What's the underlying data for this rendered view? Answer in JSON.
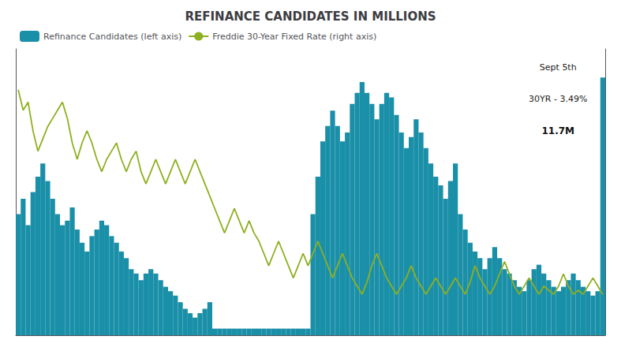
{
  "chart_data": {
    "type": "bar",
    "title": "REFINANCE CANDIDATES IN MILLIONS",
    "annotations": [
      "Sept 5th",
      "30YR - 3.49%",
      "11.7M"
    ],
    "series": [
      {
        "name": "Refinance Candidates (left axis)",
        "type": "bar",
        "color": "#1a8fa8",
        "values": [
          5.5,
          6.2,
          5.0,
          6.5,
          7.2,
          7.8,
          7.0,
          6.2,
          5.5,
          5.0,
          5.2,
          5.8,
          4.8,
          4.2,
          3.8,
          4.5,
          4.8,
          5.2,
          5.0,
          4.5,
          4.2,
          3.8,
          3.5,
          3.0,
          2.8,
          2.5,
          2.8,
          3.0,
          2.8,
          2.5,
          2.2,
          2.0,
          1.8,
          1.5,
          1.2,
          1.0,
          0.8,
          1.0,
          1.2,
          1.5,
          0.3,
          0.3,
          0.3,
          0.3,
          0.3,
          0.3,
          0.3,
          0.3,
          0.3,
          0.3,
          0.3,
          0.3,
          0.3,
          0.3,
          0.3,
          0.3,
          0.3,
          0.3,
          0.3,
          0.3,
          5.5,
          7.2,
          8.8,
          9.5,
          10.2,
          9.5,
          8.8,
          9.2,
          10.5,
          11.0,
          11.5,
          11.0,
          10.5,
          9.8,
          10.5,
          11.0,
          10.8,
          10.0,
          9.2,
          8.5,
          9.0,
          9.8,
          9.2,
          8.5,
          7.8,
          7.2,
          6.8,
          6.2,
          7.0,
          7.8,
          5.5,
          4.8,
          4.2,
          3.8,
          3.5,
          3.0,
          3.5,
          4.0,
          3.5,
          3.0,
          2.8,
          2.5,
          2.2,
          2.0,
          2.5,
          3.0,
          3.2,
          2.8,
          2.5,
          2.2,
          2.0,
          2.2,
          2.5,
          2.8,
          2.5,
          2.2,
          2.0,
          1.8,
          2.0,
          11.7
        ]
      },
      {
        "name": "Freddie 30-Year Fixed Rate (right axis)",
        "type": "line",
        "axis": "y2",
        "color": "#8db020",
        "values": [
          8.5,
          8.0,
          8.2,
          7.5,
          7.0,
          7.3,
          7.6,
          7.8,
          8.0,
          8.2,
          7.8,
          7.2,
          6.8,
          7.2,
          7.5,
          7.2,
          6.8,
          6.5,
          6.8,
          7.0,
          7.2,
          6.8,
          6.5,
          6.8,
          7.0,
          6.5,
          6.2,
          6.5,
          6.8,
          6.5,
          6.2,
          6.5,
          6.8,
          6.5,
          6.2,
          6.5,
          6.8,
          6.5,
          6.2,
          5.9,
          5.6,
          5.3,
          5.0,
          5.3,
          5.6,
          5.3,
          5.0,
          5.3,
          5.0,
          4.8,
          4.5,
          4.2,
          4.5,
          4.8,
          4.5,
          4.2,
          3.9,
          4.2,
          4.5,
          4.2,
          4.5,
          4.8,
          4.5,
          4.2,
          3.9,
          4.2,
          4.5,
          4.2,
          3.9,
          3.7,
          3.5,
          3.8,
          4.2,
          4.5,
          4.2,
          3.9,
          3.7,
          3.5,
          3.7,
          3.9,
          4.2,
          3.9,
          3.7,
          3.5,
          3.7,
          3.9,
          3.7,
          3.5,
          3.7,
          3.9,
          3.7,
          3.5,
          3.8,
          4.2,
          3.9,
          3.7,
          3.5,
          3.7,
          4.0,
          4.3,
          4.0,
          3.7,
          3.5,
          3.7,
          3.9,
          3.7,
          3.5,
          3.7,
          3.6,
          3.5,
          3.7,
          4.0,
          3.7,
          3.5,
          3.6,
          3.5,
          3.7,
          3.9,
          3.7,
          3.49
        ]
      }
    ],
    "ylim": [
      0,
      13
    ],
    "y2lim": [
      2.5,
      9.5
    ],
    "tick_labels": false,
    "grid": false,
    "legend": "top-left"
  }
}
